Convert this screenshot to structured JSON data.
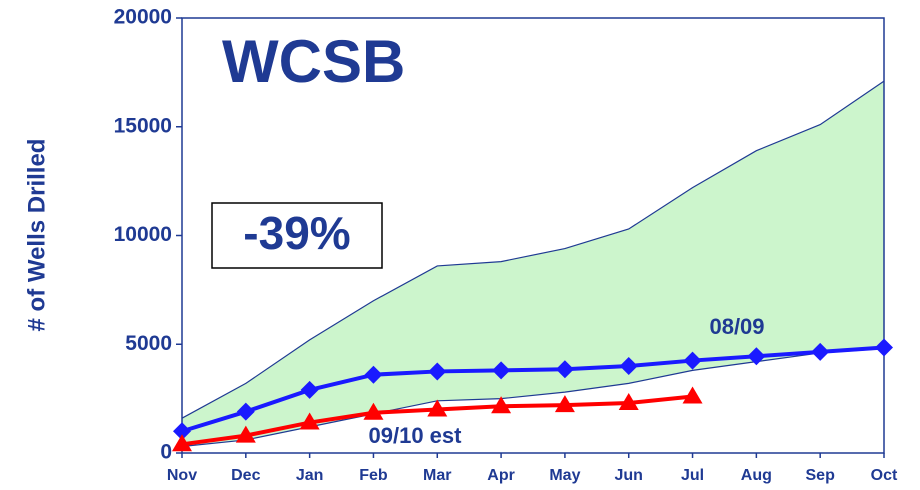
{
  "chart_data": {
    "type": "line",
    "title": "WCSB",
    "annotation": "-39%",
    "y_label": "# of Wells Drilled",
    "categories": [
      "Nov",
      "Dec",
      "Jan",
      "Feb",
      "Mar",
      "Apr",
      "May",
      "Jun",
      "Jul",
      "Aug",
      "Sep",
      "Oct"
    ],
    "band": {
      "color": "#ccf5cc",
      "upper": [
        1600,
        3200,
        5200,
        7000,
        8600,
        8800,
        9400,
        10300,
        12200,
        13900,
        15100,
        17100
      ],
      "lower": [
        300,
        600,
        1200,
        1800,
        2400,
        2500,
        2800,
        3200,
        3800,
        4200,
        4600,
        4800
      ]
    },
    "series": [
      {
        "name": "08/09",
        "color": "#1a1aff",
        "marker": "diamond",
        "values": [
          1000,
          1900,
          2900,
          3600,
          3750,
          3800,
          3850,
          4000,
          4250,
          4450,
          4650,
          4850
        ]
      },
      {
        "name": "09/10 est",
        "color": "#ff0000",
        "marker": "triangle",
        "values": [
          400,
          800,
          1400,
          1850,
          2000,
          2150,
          2200,
          2300,
          2600,
          null,
          null,
          null
        ]
      }
    ],
    "ylim": [
      0,
      20000
    ],
    "yticks": [
      0,
      5000,
      10000,
      15000,
      20000
    ]
  }
}
